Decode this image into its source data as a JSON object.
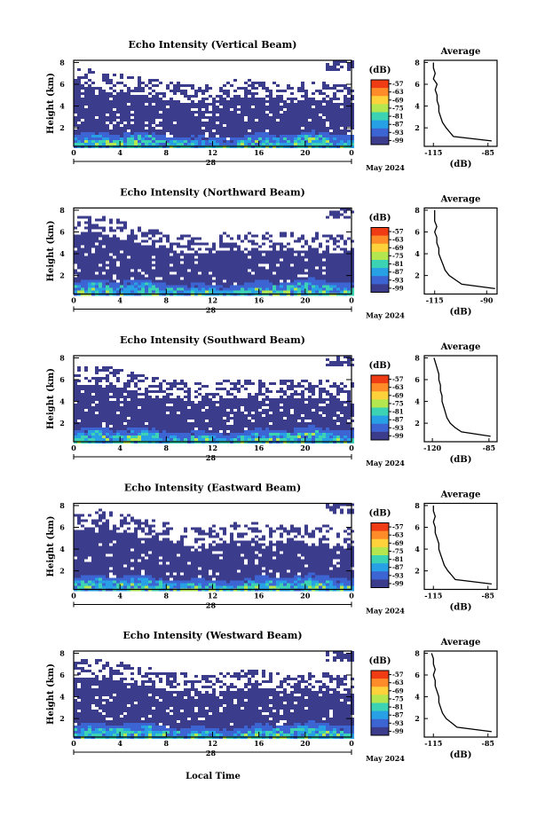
{
  "figure": {
    "xlabel": "Local Time",
    "date_label": "May 2024",
    "day_label": "28",
    "average_title": "Average",
    "unit_label": "(dB)",
    "ylabel": "Height (km)"
  },
  "colorbar": {
    "ticks": [
      "-57",
      "-63",
      "-69",
      "-75",
      "-81",
      "-87",
      "-93",
      "-99"
    ],
    "colors": [
      "#f03c14",
      "#ff8c28",
      "#ffd23c",
      "#b4e650",
      "#3cd2b4",
      "#28a0e6",
      "#3c64d2",
      "#3c3c8c"
    ]
  },
  "chart_data": [
    {
      "type": "heatmap",
      "title": "Echo Intensity (Vertical Beam)",
      "ylabel": "Height (km)",
      "xticks": [
        "0",
        "4",
        "8",
        "12",
        "16",
        "20",
        "0"
      ],
      "yticks": [
        "2",
        "4",
        "6",
        "8"
      ],
      "x_range_hours": [
        0,
        24
      ],
      "y_range_km": [
        0.3,
        8.2
      ],
      "echo_top_km": [
        6.5,
        6.3,
        5.8,
        5.6,
        5.3,
        5.0,
        4.9,
        5.2,
        5.4,
        5.2,
        5.0,
        5.3,
        5.0,
        4.9
      ],
      "profile": {
        "xticks": [
          "-115",
          "-85"
        ],
        "x_range": [
          -120,
          -80
        ],
        "height_km": [
          0.8,
          1.2,
          1.6,
          2.0,
          2.5,
          3.0,
          3.5,
          4.0,
          4.5,
          5.0,
          5.5,
          6.0,
          6.5,
          7.0,
          7.5,
          8.0
        ],
        "avg_db": [
          -83,
          -104,
          -106,
          -108,
          -110,
          -111,
          -112,
          -112,
          -113,
          -113,
          -114,
          -113,
          -115,
          -114,
          -115,
          -115
        ]
      }
    },
    {
      "type": "heatmap",
      "title": "Echo Intensity (Northward Beam)",
      "ylabel": "Height (km)",
      "xticks": [
        "0",
        "4",
        "8",
        "12",
        "16",
        "20",
        "0"
      ],
      "yticks": [
        "2",
        "4",
        "6",
        "8"
      ],
      "x_range_hours": [
        0,
        24
      ],
      "y_range_km": [
        0.3,
        8.2
      ],
      "echo_top_km": [
        6.2,
        6.5,
        6.0,
        5.5,
        5.0,
        4.6,
        4.5,
        4.8,
        5.0,
        5.0,
        4.8,
        5.0,
        4.6,
        4.6
      ],
      "profile": {
        "xticks": [
          "-115",
          "-90"
        ],
        "x_range": [
          -120,
          -85
        ],
        "height_km": [
          0.8,
          1.2,
          1.6,
          2.0,
          2.5,
          3.0,
          3.5,
          4.0,
          4.5,
          5.0,
          5.5,
          6.0,
          6.5,
          7.0,
          7.5,
          8.0
        ],
        "avg_db": [
          -86,
          -102,
          -105,
          -108,
          -110,
          -111,
          -112,
          -113,
          -113,
          -114,
          -114,
          -115,
          -114,
          -115,
          -115,
          -115
        ]
      }
    },
    {
      "type": "heatmap",
      "title": "Echo Intensity (Southward Beam)",
      "ylabel": "Height (km)",
      "xticks": [
        "0",
        "4",
        "8",
        "12",
        "16",
        "20",
        "0"
      ],
      "yticks": [
        "2",
        "4",
        "6",
        "8"
      ],
      "x_range_hours": [
        0,
        24
      ],
      "y_range_km": [
        0.3,
        8.2
      ],
      "echo_top_km": [
        6.0,
        6.2,
        6.0,
        5.4,
        5.0,
        4.8,
        4.6,
        4.8,
        5.0,
        5.0,
        4.8,
        5.0,
        4.8,
        4.6
      ],
      "profile": {
        "xticks": [
          "-120",
          "-85"
        ],
        "x_range": [
          -125,
          -80
        ],
        "height_km": [
          0.8,
          1.2,
          1.6,
          2.0,
          2.5,
          3.0,
          3.5,
          4.0,
          4.5,
          5.0,
          5.5,
          6.0,
          6.5,
          7.0,
          7.5,
          8.0
        ],
        "avg_db": [
          -84,
          -102,
          -106,
          -109,
          -111,
          -112,
          -113,
          -114,
          -114,
          -115,
          -115,
          -116,
          -116,
          -117,
          -118,
          -119
        ]
      }
    },
    {
      "type": "heatmap",
      "title": "Echo Intensity (Eastward Beam)",
      "ylabel": "Height (km)",
      "xticks": [
        "0",
        "4",
        "8",
        "12",
        "16",
        "20",
        "0"
      ],
      "yticks": [
        "2",
        "4",
        "6",
        "8"
      ],
      "x_range_hours": [
        0,
        24
      ],
      "y_range_km": [
        0.3,
        8.2
      ],
      "echo_top_km": [
        6.4,
        6.6,
        6.2,
        5.8,
        5.4,
        5.0,
        4.9,
        5.2,
        5.4,
        5.2,
        5.0,
        5.2,
        5.0,
        4.8
      ],
      "profile": {
        "xticks": [
          "-115",
          "-85"
        ],
        "x_range": [
          -120,
          -80
        ],
        "height_km": [
          0.8,
          1.2,
          1.6,
          2.0,
          2.5,
          3.0,
          3.5,
          4.0,
          4.5,
          5.0,
          5.5,
          6.0,
          6.5,
          7.0,
          7.5,
          8.0
        ],
        "avg_db": [
          -83,
          -103,
          -105,
          -107,
          -109,
          -110,
          -111,
          -112,
          -112,
          -113,
          -114,
          -114,
          -115,
          -114,
          -115,
          -115
        ]
      }
    },
    {
      "type": "heatmap",
      "title": "Echo Intensity (Westward Beam)",
      "ylabel": "Height (km)",
      "xticks": [
        "0",
        "4",
        "8",
        "12",
        "16",
        "20",
        "0"
      ],
      "yticks": [
        "2",
        "4",
        "6",
        "8"
      ],
      "x_range_hours": [
        0,
        24
      ],
      "y_range_km": [
        0.3,
        8.2
      ],
      "echo_top_km": [
        6.3,
        6.4,
        6.1,
        5.7,
        5.4,
        5.1,
        4.9,
        5.2,
        5.3,
        5.3,
        5.0,
        5.2,
        5.0,
        4.8
      ],
      "profile": {
        "xticks": [
          "-115",
          "-85"
        ],
        "x_range": [
          -120,
          -80
        ],
        "height_km": [
          0.8,
          1.2,
          1.6,
          2.0,
          2.5,
          3.0,
          3.5,
          4.0,
          4.5,
          5.0,
          5.5,
          6.0,
          6.5,
          7.0,
          7.5,
          8.0
        ],
        "avg_db": [
          -83,
          -102,
          -105,
          -108,
          -110,
          -111,
          -112,
          -112,
          -113,
          -114,
          -114,
          -115,
          -114,
          -115,
          -115,
          -116
        ]
      }
    }
  ]
}
